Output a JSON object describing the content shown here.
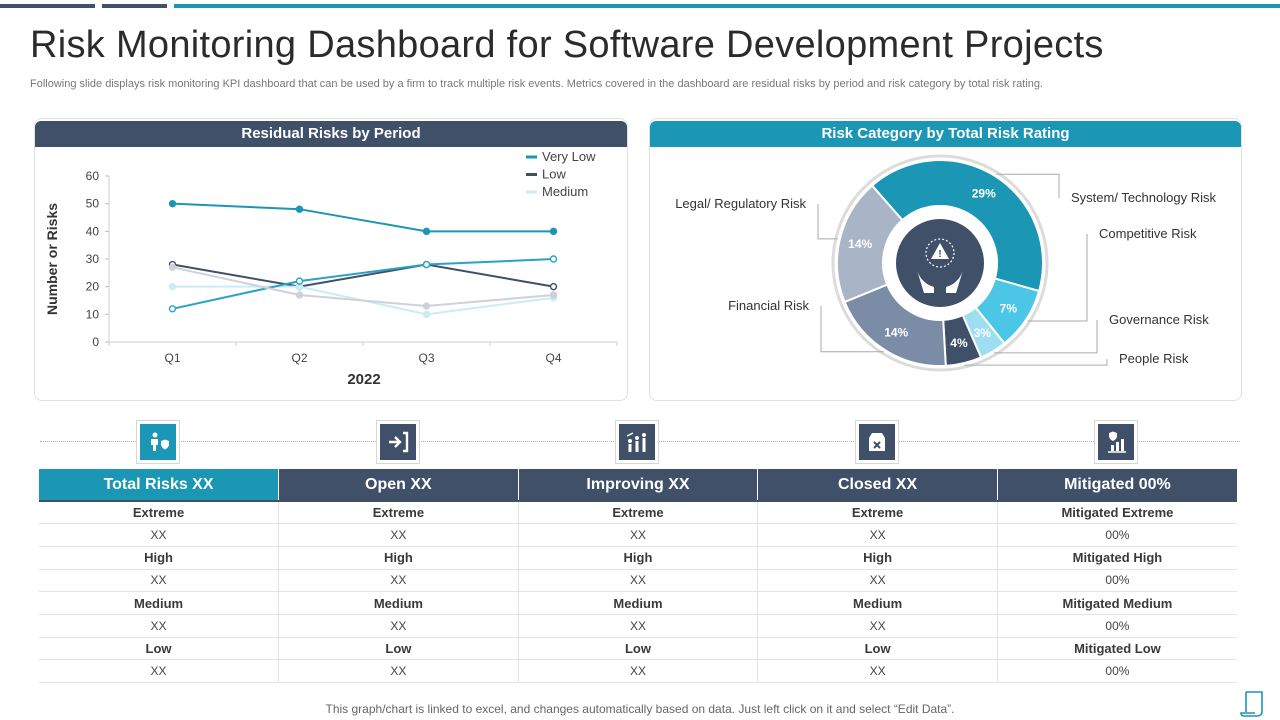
{
  "title": "Risk Monitoring Dashboard for Software Development Projects",
  "subtitle": "Following slide displays risk monitoring KPI dashboard that can be used by a firm to track multiple risk events. Metrics covered in the dashboard are residual risks by period and risk category by total risk rating.",
  "colors": {
    "navy": "#3f5068",
    "teal": "#1b96b5",
    "light_teal": "#4cc6e6",
    "pale": "#c9ecf6"
  },
  "left_panel": {
    "header": "Residual Risks by Period"
  },
  "right_panel": {
    "header": "Risk Category by Total Risk Rating"
  },
  "chart_data": [
    {
      "type": "line",
      "title": "Residual Risks by Period",
      "categories": [
        "Q1",
        "Q2",
        "Q3",
        "Q4"
      ],
      "xlabel": "2022",
      "ylabel": "Number or Risks",
      "ylim": [
        0,
        60
      ],
      "yticks": [
        0,
        10,
        20,
        30,
        40,
        50,
        60
      ],
      "legend_position": "top-right",
      "series": [
        {
          "name": "Very Low",
          "color": "#1b96b5",
          "values": [
            50,
            48,
            40,
            40
          ],
          "marker": "filled"
        },
        {
          "name": "Low",
          "color": "#3f5068",
          "values": [
            28,
            20,
            28,
            20
          ],
          "marker": "open"
        },
        {
          "name": "Medium",
          "color": "#c9ecf6",
          "values": [
            20,
            20,
            10,
            16
          ],
          "marker": "filled"
        },
        {
          "name": "",
          "color": "#2aa3c3",
          "values": [
            12,
            22,
            28,
            30
          ],
          "marker": "open"
        },
        {
          "name": "",
          "color": "#d0d0d8",
          "values": [
            27,
            17,
            13,
            17
          ],
          "marker": "filled"
        }
      ]
    },
    {
      "type": "pie",
      "title": "Risk Category by Total Risk Rating",
      "slices": [
        {
          "label": "System/ Technology Risk",
          "value": 29,
          "display": "29%",
          "color": "#1b96b5"
        },
        {
          "label": "Competitive Risk",
          "value": 7,
          "display": "7%",
          "color": "#4cc6e6"
        },
        {
          "label": "Governance Risk",
          "value": 3,
          "display": "3%",
          "color": "#9ddff1"
        },
        {
          "label": "People Risk",
          "value": 4,
          "display": "4%",
          "color": "#3f5068"
        },
        {
          "label": "Financial Risk",
          "value": 14,
          "display": "14%",
          "color": "#7b8ca6"
        },
        {
          "label": "Legal/ Regulatory Risk",
          "value": 14,
          "display": "14%",
          "color": "#a9b5c6"
        }
      ]
    }
  ],
  "table": {
    "headers": [
      "Total Risks XX",
      "Open XX",
      "Improving XX",
      "Closed XX",
      "Mitigated 00%"
    ],
    "rows": [
      {
        "kind": "lvl",
        "cells": [
          "Extreme",
          "Extreme",
          "Extreme",
          "Extreme",
          "Mitigated Extreme"
        ]
      },
      {
        "kind": "val",
        "cells": [
          "XX",
          "XX",
          "XX",
          "XX",
          "00%"
        ]
      },
      {
        "kind": "lvl",
        "cells": [
          "High",
          "High",
          "High",
          "High",
          "Mitigated High"
        ]
      },
      {
        "kind": "val",
        "cells": [
          "XX",
          "XX",
          "XX",
          "XX",
          "00%"
        ]
      },
      {
        "kind": "lvl",
        "cells": [
          "Medium",
          "Medium",
          "Medium",
          "Medium",
          "Mitigated Medium"
        ]
      },
      {
        "kind": "val",
        "cells": [
          "XX",
          "XX",
          "XX",
          "XX",
          "00%"
        ]
      },
      {
        "kind": "lvl",
        "cells": [
          "Low",
          "Low",
          "Low",
          "Low",
          "Mitigated Low"
        ]
      },
      {
        "kind": "val",
        "cells": [
          "XX",
          "XX",
          "XX",
          "XX",
          "00%"
        ]
      }
    ]
  },
  "icons": [
    "person-shield-icon",
    "enter-icon",
    "growth-people-icon",
    "closed-box-icon",
    "mitigation-report-icon"
  ],
  "footer": "This graph/chart is linked to excel,  and changes automatically based on data. Just left click on it and select “Edit  Data”."
}
